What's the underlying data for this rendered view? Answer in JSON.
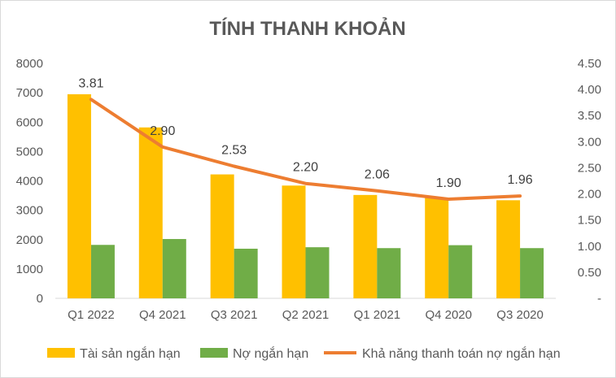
{
  "chart_data": {
    "type": "bar",
    "title": "TÍNH THANH KHOẢN",
    "categories": [
      "Q1 2022",
      "Q4 2021",
      "Q3 2021",
      "Q2 2021",
      "Q1 2021",
      "Q4 2020",
      "Q3 2020"
    ],
    "series": [
      {
        "name": "Tài sản ngắn hạn",
        "type": "bar",
        "axis": "left",
        "color": "#FFC000",
        "values": [
          6950,
          5820,
          4220,
          3840,
          3520,
          3420,
          3340
        ]
      },
      {
        "name": "Nợ ngắn hạn",
        "type": "bar",
        "axis": "left",
        "color": "#70AD47",
        "values": [
          1820,
          2020,
          1690,
          1740,
          1710,
          1810,
          1710
        ]
      },
      {
        "name": "Khả năng thanh toán nợ ngắn hạn",
        "type": "line",
        "axis": "right",
        "color": "#ED7D31",
        "values": [
          3.81,
          2.9,
          2.53,
          2.2,
          2.06,
          1.9,
          1.96
        ],
        "labels": [
          "3.81",
          "2.90",
          "2.53",
          "2.20",
          "2.06",
          "1.90",
          "1.96"
        ]
      }
    ],
    "y_left": {
      "range": [
        0,
        8000
      ],
      "ticks": [
        "0",
        "1000",
        "2000",
        "3000",
        "4000",
        "5000",
        "6000",
        "7000",
        "8000"
      ]
    },
    "y_right": {
      "range": [
        0,
        4.5
      ],
      "ticks": [
        "-",
        "0.50",
        "1.00",
        "1.50",
        "2.00",
        "2.50",
        "3.00",
        "3.50",
        "4.00",
        "4.50"
      ]
    },
    "grid": false,
    "legend": "bottom"
  }
}
